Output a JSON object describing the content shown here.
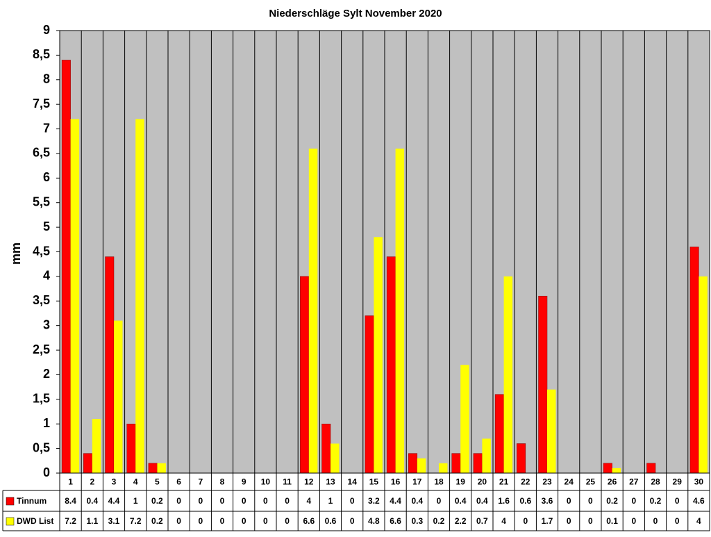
{
  "chart_data": {
    "type": "bar",
    "title": "Niederschläge Sylt November 2020",
    "y_label": "mm",
    "categories": [
      "1",
      "2",
      "3",
      "4",
      "5",
      "6",
      "7",
      "8",
      "9",
      "10",
      "11",
      "12",
      "13",
      "14",
      "15",
      "16",
      "17",
      "18",
      "19",
      "20",
      "21",
      "22",
      "23",
      "24",
      "25",
      "26",
      "27",
      "28",
      "29",
      "30"
    ],
    "series": [
      {
        "name": "Tinnum",
        "color": "#ff0000",
        "values": [
          8.4,
          0.4,
          4.4,
          1,
          0.2,
          0,
          0,
          0,
          0,
          0,
          0,
          4,
          1,
          0,
          3.2,
          4.4,
          0.4,
          0,
          0.4,
          0.4,
          1.6,
          0.6,
          3.6,
          0,
          0,
          0.2,
          0,
          0.2,
          0,
          4.6
        ]
      },
      {
        "name": "DWD List",
        "color": "#ffff00",
        "values": [
          7.2,
          1.1,
          3.1,
          7.2,
          0.2,
          0,
          0,
          0,
          0,
          0,
          0,
          6.6,
          0.6,
          0,
          4.8,
          6.6,
          0.3,
          0.2,
          2.2,
          0.7,
          4,
          0,
          1.7,
          0,
          0,
          0.1,
          0,
          0,
          0,
          4
        ]
      }
    ],
    "ylim": [
      0,
      9
    ],
    "yticks": [
      0,
      {
        "value": 0.5,
        "label": "0,5"
      },
      1,
      {
        "value": 1.5,
        "label": "1,5"
      },
      2,
      {
        "value": 2.5,
        "label": "2,5"
      },
      3,
      {
        "value": 3.5,
        "label": "3,5"
      },
      4,
      {
        "value": 4.5,
        "label": "4,5"
      },
      5,
      {
        "value": 5.5,
        "label": "5,5"
      },
      6,
      {
        "value": 6.5,
        "label": "6,5"
      },
      7,
      {
        "value": 7.5,
        "label": "7,5"
      },
      8,
      {
        "value": 8.5,
        "label": "8,5"
      },
      9
    ],
    "data_table": true
  }
}
